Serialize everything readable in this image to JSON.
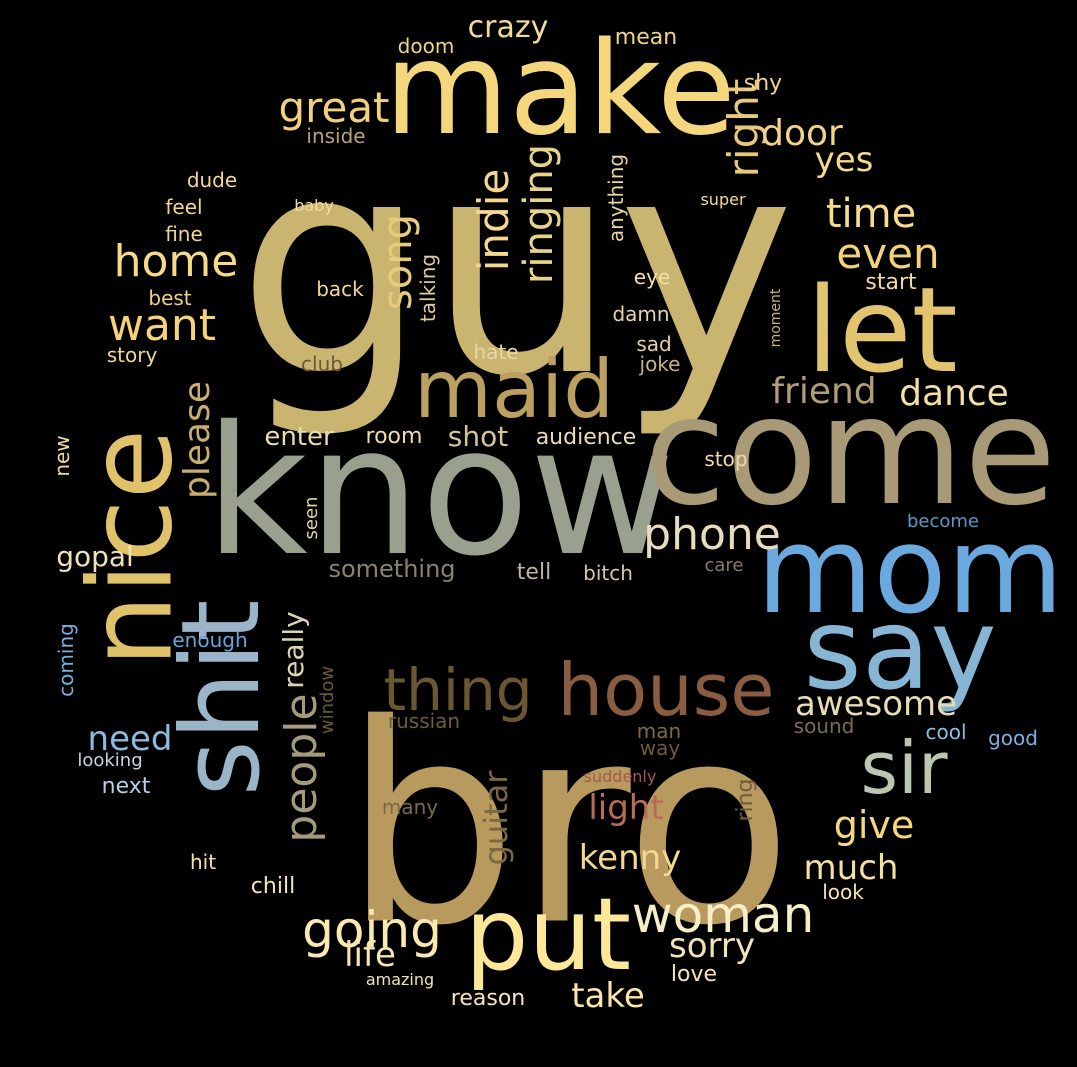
{
  "words": [
    {
      "text": "guy",
      "color": "#c9b56f"
    },
    {
      "text": "bro",
      "color": "#b99a5e"
    },
    {
      "text": "know",
      "color": "#9aa08e"
    },
    {
      "text": "come",
      "color": "#a89a76"
    },
    {
      "text": "make",
      "color": "#f4d67c"
    },
    {
      "text": "mom",
      "color": "#6aa8de"
    },
    {
      "text": "say",
      "color": "#86b6d4"
    },
    {
      "text": "nice",
      "color": "#e0c26a"
    },
    {
      "text": "let",
      "color": "#e2c46e"
    },
    {
      "text": "maid",
      "color": "#bba060"
    },
    {
      "text": "shit",
      "color": "#9cb4c8"
    },
    {
      "text": "put",
      "color": "#fde89a"
    },
    {
      "text": "house",
      "color": "#8a5c40"
    },
    {
      "text": "sir",
      "color": "#bcc6b0"
    },
    {
      "text": "thing",
      "color": "#6a5630"
    },
    {
      "text": "woman",
      "color": "#f6eec6"
    },
    {
      "text": "going",
      "color": "#fbe9b0"
    },
    {
      "text": "people",
      "color": "#a59a7e"
    },
    {
      "text": "phone",
      "color": "#e8dcbe"
    },
    {
      "text": "great",
      "color": "#f3d07c"
    },
    {
      "text": "home",
      "color": "#f6da86"
    },
    {
      "text": "want",
      "color": "#f6d278"
    },
    {
      "text": "time",
      "color": "#f7dc8e"
    },
    {
      "text": "even",
      "color": "#f3d278"
    },
    {
      "text": "right",
      "color": "#e6ca7a"
    },
    {
      "text": "door",
      "color": "#f1d48a"
    },
    {
      "text": "yes",
      "color": "#f5da8a"
    },
    {
      "text": "song",
      "color": "#e8cc7e"
    },
    {
      "text": "indie",
      "color": "#f5d890"
    },
    {
      "text": "ringing",
      "color": "#e7d48a"
    },
    {
      "text": "please",
      "color": "#c7ad70"
    },
    {
      "text": "friend",
      "color": "#b09e78"
    },
    {
      "text": "dance",
      "color": "#f2dfa6"
    },
    {
      "text": "awesome",
      "color": "#e6dcb6"
    },
    {
      "text": "give",
      "color": "#f6d87c"
    },
    {
      "text": "much",
      "color": "#f4e0a0"
    },
    {
      "text": "kenny",
      "color": "#f4d890"
    },
    {
      "text": "light",
      "color": "#b96a58"
    },
    {
      "text": "guitar",
      "color": "#7a6840"
    },
    {
      "text": "sorry",
      "color": "#f3e4b8"
    },
    {
      "text": "life",
      "color": "#f8e6b2"
    },
    {
      "text": "take",
      "color": "#fbe6a8"
    },
    {
      "text": "need",
      "color": "#8abce0"
    },
    {
      "text": "gopal",
      "color": "#efe2b6"
    },
    {
      "text": "really",
      "color": "#dcd4b4"
    },
    {
      "text": "enter",
      "color": "#eadcb0"
    },
    {
      "text": "room",
      "color": "#f1dcac"
    },
    {
      "text": "shot",
      "color": "#d6c39a"
    },
    {
      "text": "audience",
      "color": "#eadcb8"
    },
    {
      "text": "crazy",
      "color": "#f4dc98"
    },
    {
      "text": "doom",
      "color": "#f0d488"
    },
    {
      "text": "mean",
      "color": "#f2d488"
    },
    {
      "text": "shy",
      "color": "#f0d490"
    },
    {
      "text": "inside",
      "color": "#b8a27a"
    },
    {
      "text": "dude",
      "color": "#f6d892"
    },
    {
      "text": "feel",
      "color": "#f3d88e"
    },
    {
      "text": "fine",
      "color": "#f2d690"
    },
    {
      "text": "best",
      "color": "#eed28a"
    },
    {
      "text": "story",
      "color": "#efd890"
    },
    {
      "text": "baby",
      "color": "#f5dc98"
    },
    {
      "text": "super",
      "color": "#f4dc98"
    },
    {
      "text": "anything",
      "color": "#e9d6a2"
    },
    {
      "text": "talking",
      "color": "#ddcba0"
    },
    {
      "text": "back",
      "color": "#f2d898"
    },
    {
      "text": "eye",
      "color": "#f4e0a8"
    },
    {
      "text": "damn",
      "color": "#e6d6a8"
    },
    {
      "text": "sad",
      "color": "#e4d2a4"
    },
    {
      "text": "hate",
      "color": "#e9d6a6"
    },
    {
      "text": "joke",
      "color": "#c4b288"
    },
    {
      "text": "club",
      "color": "#6e5838"
    },
    {
      "text": "moment",
      "color": "#c8b27e"
    },
    {
      "text": "start",
      "color": "#f3dc98"
    },
    {
      "text": "stop",
      "color": "#eedcaa"
    },
    {
      "text": "become",
      "color": "#5e96c6"
    },
    {
      "text": "care",
      "color": "#8a7c60"
    },
    {
      "text": "new",
      "color": "#f1dca0"
    },
    {
      "text": "seen",
      "color": "#e2d4ac"
    },
    {
      "text": "something",
      "color": "#8a8270"
    },
    {
      "text": "tell",
      "color": "#bdb49c"
    },
    {
      "text": "bitch",
      "color": "#d2c8ac"
    },
    {
      "text": "enough",
      "color": "#6aa4d8"
    },
    {
      "text": "coming",
      "color": "#7aaedc"
    },
    {
      "text": "looking",
      "color": "#c4d6e4"
    },
    {
      "text": "next",
      "color": "#b4d0e6"
    },
    {
      "text": "window",
      "color": "#6c5a34"
    },
    {
      "text": "russian",
      "color": "#6e5c3c"
    },
    {
      "text": "man",
      "color": "#7c6a48"
    },
    {
      "text": "way",
      "color": "#6c5a38"
    },
    {
      "text": "sound",
      "color": "#7c6c4c"
    },
    {
      "text": "cool",
      "color": "#8ac0e6"
    },
    {
      "text": "good",
      "color": "#7ab0e0"
    },
    {
      "text": "suddenly",
      "color": "#a35a4e"
    },
    {
      "text": "ring",
      "color": "#6e5c3a"
    },
    {
      "text": "many",
      "color": "#7a6a4a"
    },
    {
      "text": "hit",
      "color": "#f5e2a8"
    },
    {
      "text": "chill",
      "color": "#f6e6b4"
    },
    {
      "text": "look",
      "color": "#f6e4ac"
    },
    {
      "text": "love",
      "color": "#f6e4b0"
    },
    {
      "text": "amazing",
      "color": "#f4e4b4"
    },
    {
      "text": "reason",
      "color": "#f7e6b4"
    }
  ]
}
